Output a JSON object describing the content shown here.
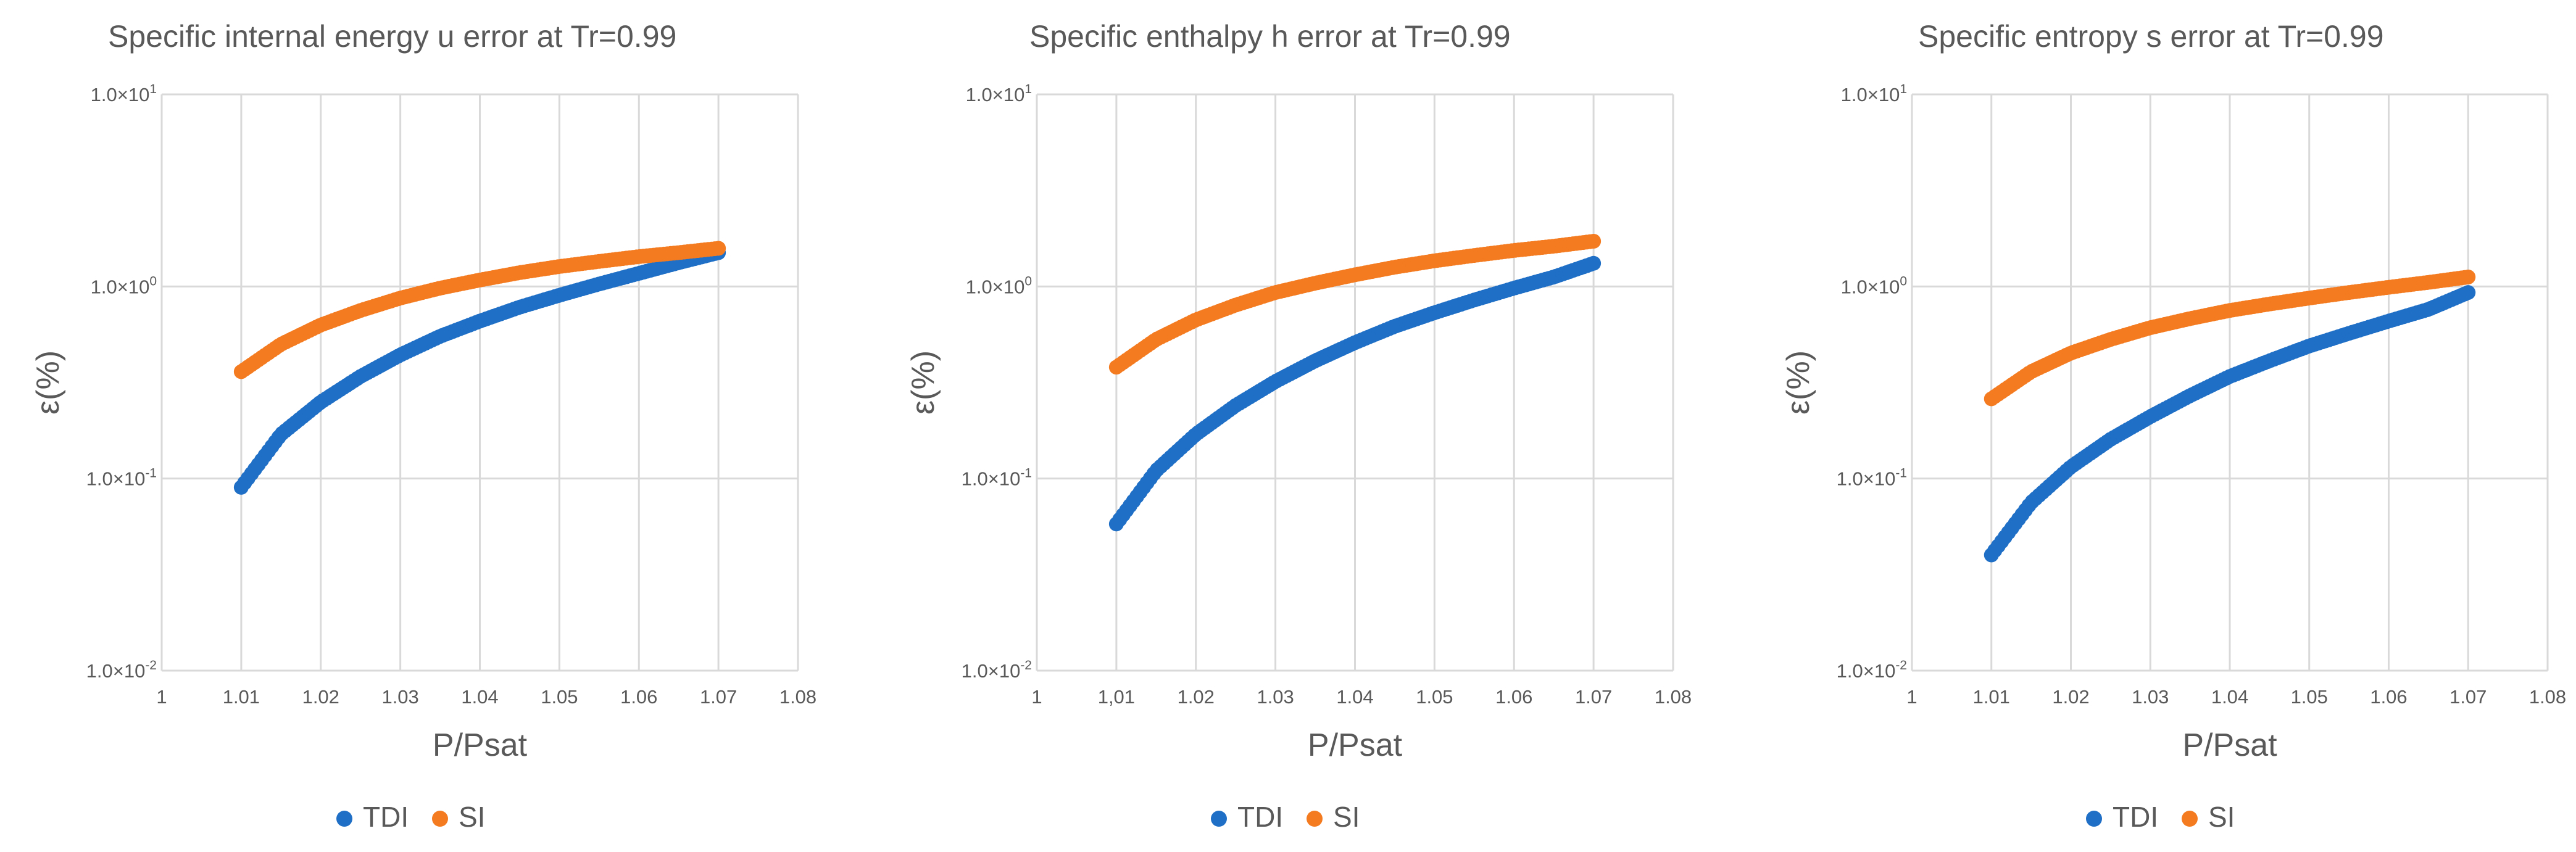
{
  "chart_data": [
    {
      "type": "scatter",
      "title": "Specific internal energy u error at Tr=0.99",
      "xlabel": "P/Psat",
      "ylabel": "ε(%)",
      "xlim": [
        1,
        1.08
      ],
      "ylim": [
        0.01,
        10
      ],
      "yscale": "log",
      "xticks": [
        "1",
        "1.01",
        "1.02",
        "1.03",
        "1.04",
        "1.05",
        "1.06",
        "1.07",
        "1.08"
      ],
      "yticks": [
        {
          "base": "1.0×10",
          "exp": "1"
        },
        {
          "base": "1.0×10",
          "exp": "0"
        },
        {
          "base": "1.0×10",
          "exp": "-1"
        },
        {
          "base": "1.0×10",
          "exp": "-2"
        }
      ],
      "grid": true,
      "legend": "bottom",
      "series": [
        {
          "name": "TDI",
          "color": "#1f6fc6",
          "x": [
            1.01,
            1.015,
            1.02,
            1.025,
            1.03,
            1.035,
            1.04,
            1.045,
            1.05,
            1.055,
            1.06,
            1.065,
            1.07
          ],
          "y": [
            0.09,
            0.17,
            0.25,
            0.34,
            0.44,
            0.55,
            0.66,
            0.78,
            0.9,
            1.03,
            1.17,
            1.33,
            1.5
          ]
        },
        {
          "name": "SI",
          "color": "#f47b20",
          "x": [
            1.01,
            1.015,
            1.02,
            1.025,
            1.03,
            1.035,
            1.04,
            1.045,
            1.05,
            1.055,
            1.06,
            1.065,
            1.07
          ],
          "y": [
            0.36,
            0.5,
            0.63,
            0.75,
            0.87,
            0.98,
            1.08,
            1.18,
            1.27,
            1.35,
            1.43,
            1.5,
            1.58
          ]
        }
      ]
    },
    {
      "type": "scatter",
      "title": "Specific enthalpy h error at Tr=0.99",
      "xlabel": "P/Psat",
      "ylabel": "ε(%)",
      "xlim": [
        1,
        1.08
      ],
      "ylim": [
        0.01,
        10
      ],
      "yscale": "log",
      "xticks": [
        "1",
        "1,01",
        "1.02",
        "1.03",
        "1.04",
        "1.05",
        "1.06",
        "1.07",
        "1.08"
      ],
      "yticks": [
        {
          "base": "1.0×10",
          "exp": "1"
        },
        {
          "base": "1.0×10",
          "exp": "0"
        },
        {
          "base": "1.0×10",
          "exp": "-1"
        },
        {
          "base": "1.0×10",
          "exp": "-2"
        }
      ],
      "grid": true,
      "legend": "bottom",
      "series": [
        {
          "name": "TDI",
          "color": "#1f6fc6",
          "x": [
            1.01,
            1.015,
            1.02,
            1.025,
            1.03,
            1.035,
            1.04,
            1.045,
            1.05,
            1.055,
            1.06,
            1.065,
            1.07
          ],
          "y": [
            0.058,
            0.11,
            0.17,
            0.24,
            0.32,
            0.41,
            0.51,
            0.62,
            0.73,
            0.85,
            0.98,
            1.12,
            1.32
          ]
        },
        {
          "name": "SI",
          "color": "#f47b20",
          "x": [
            1.01,
            1.015,
            1.02,
            1.025,
            1.03,
            1.035,
            1.04,
            1.045,
            1.05,
            1.055,
            1.06,
            1.065,
            1.07
          ],
          "y": [
            0.38,
            0.53,
            0.67,
            0.8,
            0.93,
            1.04,
            1.15,
            1.26,
            1.36,
            1.45,
            1.54,
            1.62,
            1.72
          ]
        }
      ]
    },
    {
      "type": "scatter",
      "title": "Specific entropy s error at Tr=0.99",
      "xlabel": "P/Psat",
      "ylabel": "ε(%)",
      "xlim": [
        1,
        1.08
      ],
      "ylim": [
        0.01,
        10
      ],
      "yscale": "log",
      "xticks": [
        "1",
        "1.01",
        "1.02",
        "1.03",
        "1.04",
        "1.05",
        "1.06",
        "1.07",
        "1.08"
      ],
      "yticks": [
        {
          "base": "1.0×10",
          "exp": "1"
        },
        {
          "base": "1.0×10",
          "exp": "0"
        },
        {
          "base": "1.0×10",
          "exp": "-1"
        },
        {
          "base": "1.0×10",
          "exp": "-2"
        }
      ],
      "grid": true,
      "legend": "bottom",
      "series": [
        {
          "name": "TDI",
          "color": "#1f6fc6",
          "x": [
            1.01,
            1.015,
            1.02,
            1.025,
            1.03,
            1.035,
            1.04,
            1.045,
            1.05,
            1.055,
            1.06,
            1.065,
            1.07
          ],
          "y": [
            0.04,
            0.075,
            0.115,
            0.16,
            0.21,
            0.27,
            0.34,
            0.41,
            0.49,
            0.57,
            0.66,
            0.76,
            0.93
          ]
        },
        {
          "name": "SI",
          "color": "#f47b20",
          "x": [
            1.01,
            1.015,
            1.02,
            1.025,
            1.03,
            1.035,
            1.04,
            1.045,
            1.05,
            1.055,
            1.06,
            1.065,
            1.07
          ],
          "y": [
            0.26,
            0.36,
            0.45,
            0.53,
            0.61,
            0.68,
            0.75,
            0.81,
            0.87,
            0.93,
            0.99,
            1.05,
            1.12
          ]
        }
      ]
    }
  ]
}
